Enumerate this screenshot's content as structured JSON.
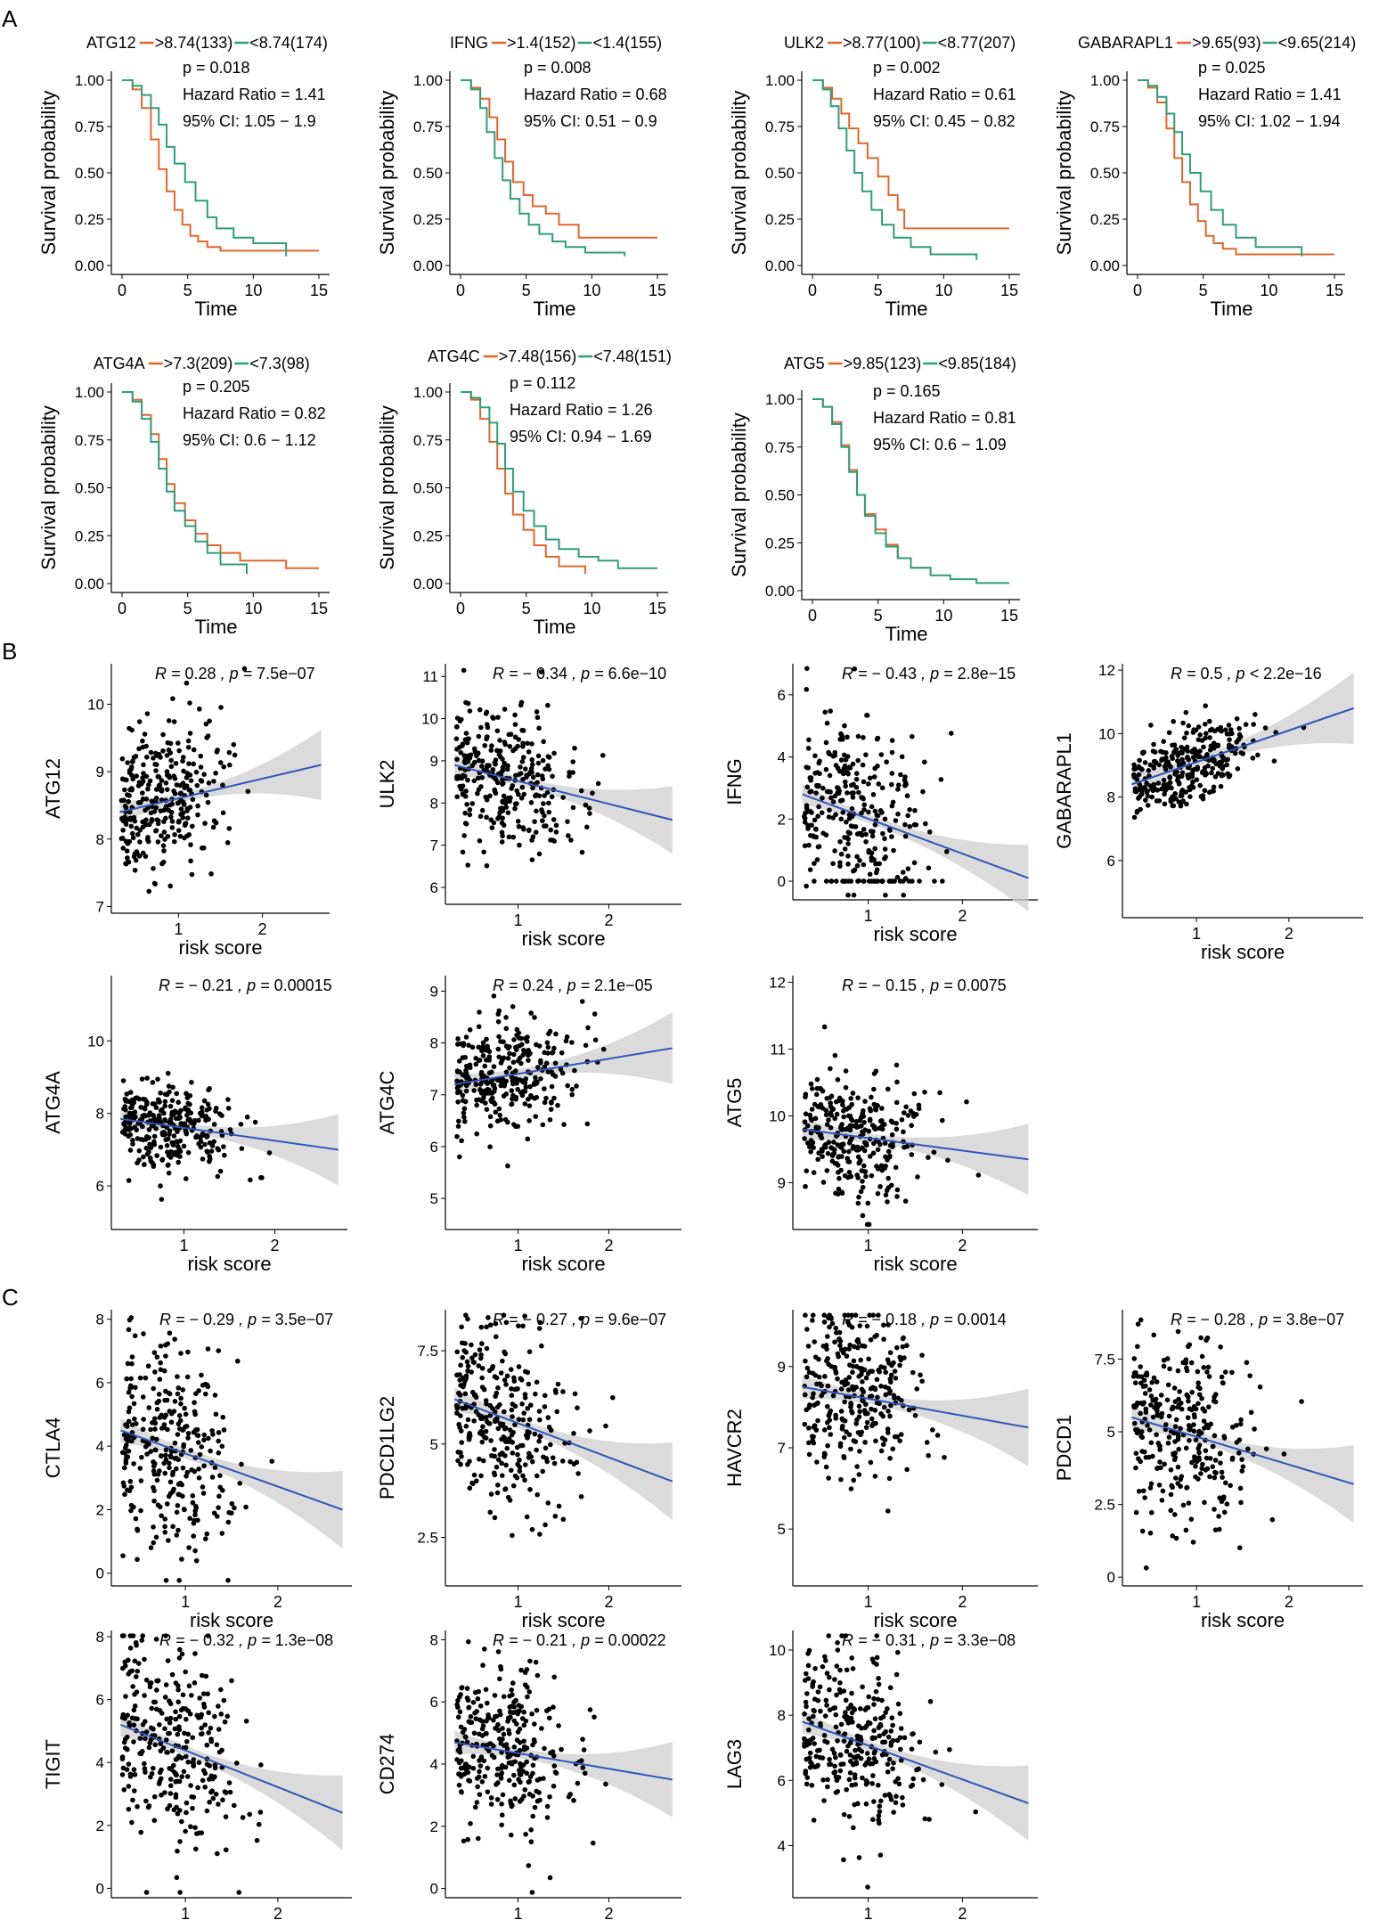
{
  "figure": {
    "panel_labels": [
      "A",
      "B",
      "C"
    ],
    "survival_axis": {
      "ylabel": "Survival probability",
      "xlabel": "Time",
      "yticks": [
        "0.00",
        "0.25",
        "0.50",
        "0.75",
        "1.00"
      ],
      "xticks": [
        "0",
        "5",
        "10",
        "15"
      ]
    },
    "corr_axis": {
      "xlabel": "risk score"
    }
  },
  "colors": {
    "high": "#e0672b",
    "low": "#2e9e7c",
    "fit": "#2e57b5",
    "band": "#cfcfcf",
    "point": "#000000"
  },
  "chart_data": [
    {
      "type": "line",
      "panel": "A",
      "gene": "ATG12",
      "legend": [
        "ATG12",
        ">8.74(133)",
        "<8.74(174)"
      ],
      "stats": [
        "p = 0.018",
        "Hazard Ratio = 1.41",
        "95% CI: 1.05 − 1.9"
      ],
      "xlim": [
        0,
        15
      ],
      "ylim": [
        0,
        1
      ],
      "series": [
        {
          "name": ">8.74(133)",
          "color": "high",
          "x": [
            0,
            0.8,
            1.5,
            2.2,
            2.8,
            3.4,
            4,
            4.6,
            5.2,
            5.8,
            6.5,
            7.5,
            15
          ],
          "y": [
            1,
            0.95,
            0.85,
            0.68,
            0.52,
            0.4,
            0.3,
            0.22,
            0.16,
            0.13,
            0.1,
            0.08,
            0.08
          ]
        },
        {
          "name": "<8.74(174)",
          "color": "low",
          "x": [
            0,
            0.8,
            1.5,
            2.2,
            2.8,
            3.4,
            4,
            4.8,
            5.6,
            6.5,
            7.2,
            8.5,
            10,
            12.5
          ],
          "y": [
            1,
            0.97,
            0.92,
            0.85,
            0.76,
            0.64,
            0.55,
            0.45,
            0.35,
            0.26,
            0.2,
            0.15,
            0.12,
            0.05
          ]
        }
      ]
    },
    {
      "type": "line",
      "panel": "A",
      "gene": "IFNG",
      "legend": [
        "IFNG",
        ">1.4(152)",
        "<1.4(155)"
      ],
      "stats": [
        "p = 0.008",
        "Hazard Ratio = 0.68",
        "95% CI: 0.51 − 0.9"
      ],
      "xlim": [
        0,
        15
      ],
      "ylim": [
        0,
        1
      ],
      "series": [
        {
          "name": ">1.4(152)",
          "color": "high",
          "x": [
            0,
            0.8,
            1.5,
            2.2,
            2.8,
            3.4,
            4,
            4.8,
            5.5,
            6.5,
            7.5,
            9,
            15
          ],
          "y": [
            1,
            0.96,
            0.9,
            0.8,
            0.68,
            0.56,
            0.45,
            0.38,
            0.32,
            0.28,
            0.22,
            0.15,
            0.15
          ]
        },
        {
          "name": "<1.4(155)",
          "color": "low",
          "x": [
            0,
            0.8,
            1.5,
            2,
            2.6,
            3.2,
            3.8,
            4.5,
            5.2,
            6,
            7,
            8,
            9.5,
            12.5
          ],
          "y": [
            1,
            0.95,
            0.85,
            0.72,
            0.58,
            0.46,
            0.36,
            0.28,
            0.22,
            0.17,
            0.13,
            0.1,
            0.07,
            0.05
          ]
        }
      ]
    },
    {
      "type": "line",
      "panel": "A",
      "gene": "ULK2",
      "legend": [
        "ULK2",
        ">8.77(100)",
        "<8.77(207)"
      ],
      "stats": [
        "p = 0.002",
        "Hazard Ratio = 0.61",
        "95% CI: 0.45 − 0.82"
      ],
      "xlim": [
        0,
        15
      ],
      "ylim": [
        0,
        1
      ],
      "series": [
        {
          "name": ">8.77(100)",
          "color": "high",
          "x": [
            0,
            0.8,
            1.5,
            2.2,
            2.8,
            3.5,
            4.2,
            5,
            5.8,
            6.5,
            7,
            15
          ],
          "y": [
            1,
            0.96,
            0.9,
            0.82,
            0.74,
            0.66,
            0.58,
            0.48,
            0.38,
            0.3,
            0.2,
            0.2
          ]
        },
        {
          "name": "<8.77(207)",
          "color": "low",
          "x": [
            0,
            0.8,
            1.4,
            2,
            2.6,
            3.2,
            3.8,
            4.5,
            5.3,
            6.2,
            7.5,
            9,
            12.5
          ],
          "y": [
            1,
            0.95,
            0.86,
            0.74,
            0.62,
            0.5,
            0.4,
            0.3,
            0.22,
            0.15,
            0.1,
            0.06,
            0.03
          ]
        }
      ]
    },
    {
      "type": "line",
      "panel": "A",
      "gene": "GABARAPL1",
      "legend": [
        "GABARAPL1",
        ">9.65(93)",
        "<9.65(214)"
      ],
      "stats": [
        "p = 0.025",
        "Hazard Ratio = 1.41",
        "95% CI: 1.02 − 1.94"
      ],
      "xlim": [
        0,
        15
      ],
      "ylim": [
        0,
        1
      ],
      "series": [
        {
          "name": ">9.65(93)",
          "color": "high",
          "x": [
            0,
            0.8,
            1.5,
            2.2,
            2.8,
            3.4,
            4,
            4.6,
            5.2,
            5.8,
            6.5,
            7.5,
            15
          ],
          "y": [
            1,
            0.96,
            0.88,
            0.74,
            0.58,
            0.45,
            0.33,
            0.24,
            0.16,
            0.12,
            0.09,
            0.06,
            0.06
          ]
        },
        {
          "name": "<9.65(214)",
          "color": "low",
          "x": [
            0,
            0.8,
            1.5,
            2.2,
            2.8,
            3.4,
            4,
            4.8,
            5.6,
            6.5,
            7.5,
            9,
            12.5
          ],
          "y": [
            1,
            0.97,
            0.91,
            0.82,
            0.72,
            0.6,
            0.5,
            0.4,
            0.3,
            0.22,
            0.15,
            0.1,
            0.05
          ]
        }
      ]
    },
    {
      "type": "line",
      "panel": "A",
      "gene": "ATG4A",
      "legend": [
        "ATG4A",
        ">7.3(209)",
        "<7.3(98)"
      ],
      "stats": [
        "p = 0.205",
        "Hazard Ratio = 0.82",
        "95% CI: 0.6 − 1.12"
      ],
      "xlim": [
        0,
        15
      ],
      "ylim": [
        0,
        1
      ],
      "series": [
        {
          "name": ">7.3(209)",
          "color": "high",
          "x": [
            0,
            0.8,
            1.5,
            2.2,
            2.8,
            3.4,
            4,
            4.8,
            5.6,
            6.5,
            7.5,
            9,
            12.5,
            15
          ],
          "y": [
            1,
            0.96,
            0.88,
            0.78,
            0.65,
            0.52,
            0.42,
            0.33,
            0.26,
            0.2,
            0.16,
            0.12,
            0.08,
            0.08
          ]
        },
        {
          "name": "<7.3(98)",
          "color": "low",
          "x": [
            0,
            0.8,
            1.5,
            2.2,
            2.8,
            3.4,
            4,
            4.8,
            5.6,
            6.5,
            7.5,
            9.5
          ],
          "y": [
            1,
            0.95,
            0.86,
            0.74,
            0.6,
            0.48,
            0.38,
            0.3,
            0.22,
            0.16,
            0.1,
            0.05
          ]
        }
      ]
    },
    {
      "type": "line",
      "panel": "A",
      "gene": "ATG4C",
      "legend": [
        "ATG4C",
        ">7.48(156)",
        "<7.48(151)"
      ],
      "stats": [
        "p = 0.112",
        "Hazard Ratio = 1.26",
        "95% CI: 0.94 − 1.69"
      ],
      "xlim": [
        0,
        15
      ],
      "ylim": [
        0,
        1
      ],
      "series": [
        {
          "name": ">7.48(156)",
          "color": "high",
          "x": [
            0,
            0.8,
            1.5,
            2.2,
            2.8,
            3.4,
            4,
            4.8,
            5.6,
            6.5,
            7.5,
            9.5
          ],
          "y": [
            1,
            0.96,
            0.86,
            0.74,
            0.6,
            0.47,
            0.36,
            0.28,
            0.2,
            0.14,
            0.09,
            0.05
          ]
        },
        {
          "name": "<7.48(151)",
          "color": "low",
          "x": [
            0,
            0.8,
            1.5,
            2.2,
            2.8,
            3.4,
            4,
            4.8,
            5.6,
            6.5,
            7.5,
            9,
            10.5,
            12,
            15
          ],
          "y": [
            1,
            0.97,
            0.92,
            0.84,
            0.73,
            0.6,
            0.48,
            0.38,
            0.3,
            0.23,
            0.18,
            0.14,
            0.12,
            0.08,
            0.08
          ]
        }
      ]
    },
    {
      "type": "line",
      "panel": "A",
      "gene": "ATG5",
      "legend": [
        "ATG5",
        ">9.85(123)",
        "<9.85(184)"
      ],
      "stats": [
        "p = 0.165",
        "Hazard Ratio = 0.81",
        "95% CI: 0.6 − 1.09"
      ],
      "xlim": [
        0,
        15
      ],
      "ylim": [
        0,
        1
      ],
      "series": [
        {
          "name": ">9.85(123)",
          "color": "high",
          "x": [
            0,
            0.8,
            1.5,
            2.2,
            2.8,
            3.4,
            4,
            4.8,
            5.6,
            6.5,
            7.5,
            9
          ],
          "y": [
            1,
            0.96,
            0.88,
            0.76,
            0.63,
            0.5,
            0.4,
            0.32,
            0.24,
            0.17,
            0.12,
            0.1
          ]
        },
        {
          "name": "<9.85(184)",
          "color": "low",
          "x": [
            0,
            0.8,
            1.5,
            2.2,
            2.8,
            3.4,
            4,
            4.8,
            5.6,
            6.5,
            7.5,
            9,
            10.5,
            12.5,
            15
          ],
          "y": [
            1,
            0.96,
            0.87,
            0.75,
            0.62,
            0.5,
            0.39,
            0.3,
            0.23,
            0.17,
            0.12,
            0.08,
            0.06,
            0.04,
            0.04
          ]
        }
      ]
    },
    {
      "type": "scatter",
      "panel": "B",
      "ylabel": "ATG12",
      "stat": {
        "prefix": "R = ",
        "r": "0.28",
        "mid": " , p = ",
        "p": "7.5e−07"
      },
      "xlim": [
        0.2,
        2.8
      ],
      "ylim": [
        6.9,
        10.6
      ],
      "yticks": [
        7,
        8,
        9,
        10
      ],
      "xticks": [
        1,
        2
      ],
      "fit": [
        8.4,
        9.1
      ],
      "mean": 8.7,
      "sd": 0.55,
      "seed": 11
    },
    {
      "type": "scatter",
      "panel": "B",
      "ylabel": "ULK2",
      "stat": {
        "prefix": "R = ",
        "r": "− 0.34",
        "mid": " , p = ",
        "p": "6.6e−10"
      },
      "xlim": [
        0.2,
        2.8
      ],
      "ylim": [
        5.6,
        11.3
      ],
      "yticks": [
        6,
        7,
        8,
        9,
        10,
        11
      ],
      "xticks": [
        1,
        2
      ],
      "fit": [
        8.9,
        7.6
      ],
      "mean": 8.4,
      "sd": 0.85,
      "seed": 22
    },
    {
      "type": "scatter",
      "panel": "B",
      "ylabel": "IFNG",
      "stat": {
        "prefix": "R = ",
        "r": "− 0.43",
        "mid": " , p = ",
        "p": "2.8e−15"
      },
      "xlim": [
        0.2,
        2.8
      ],
      "ylim": [
        -0.6,
        7.0
      ],
      "yticks": [
        0,
        2,
        4,
        6
      ],
      "xticks": [
        1,
        2
      ],
      "fit": [
        2.8,
        0.1
      ],
      "mean": 2.0,
      "sd": 1.6,
      "floor": 0,
      "seed": 33
    },
    {
      "type": "scatter",
      "panel": "B",
      "ylabel": "GABARAPL1",
      "stat": {
        "prefix": "R = ",
        "r": "0.5",
        "mid": " , p < ",
        "p": "2.2e−16"
      },
      "xlim": [
        0.2,
        2.8
      ],
      "ylim": [
        4.2,
        12.2
      ],
      "yticks": [
        6,
        8,
        10,
        12
      ],
      "xticks": [
        1,
        2
      ],
      "fit": [
        8.4,
        10.8
      ],
      "mean": 9.3,
      "sd": 0.7,
      "seed": 44
    },
    {
      "type": "scatter",
      "panel": "B",
      "ylabel": "ATG4A",
      "stat": {
        "prefix": "R = ",
        "r": "− 0.21",
        "mid": " , p = ",
        "p": "0.00015"
      },
      "xlim": [
        0.2,
        2.8
      ],
      "ylim": [
        4.8,
        11.8
      ],
      "yticks": [
        6,
        8,
        10
      ],
      "xticks": [
        1,
        2
      ],
      "fit": [
        7.85,
        7.0
      ],
      "mean": 7.55,
      "sd": 0.6,
      "seed": 55
    },
    {
      "type": "scatter",
      "panel": "B",
      "ylabel": "ATG4C",
      "stat": {
        "prefix": "R = ",
        "r": "0.24",
        "mid": " , p = ",
        "p": "2.1e−05"
      },
      "xlim": [
        0.2,
        2.8
      ],
      "ylim": [
        4.4,
        9.3
      ],
      "yticks": [
        5,
        6,
        7,
        8,
        9
      ],
      "xticks": [
        1,
        2
      ],
      "fit": [
        7.2,
        7.9
      ],
      "mean": 7.5,
      "sd": 0.55,
      "seed": 66
    },
    {
      "type": "scatter",
      "panel": "B",
      "ylabel": "ATG5",
      "stat": {
        "prefix": "R = ",
        "r": "− 0.15",
        "mid": " , p = ",
        "p": "0.0075"
      },
      "xlim": [
        0.2,
        2.8
      ],
      "ylim": [
        8.3,
        12.1
      ],
      "yticks": [
        9,
        10,
        11,
        12
      ],
      "xticks": [
        1,
        2
      ],
      "fit": [
        9.8,
        9.35
      ],
      "mean": 9.6,
      "sd": 0.5,
      "seed": 77
    },
    {
      "type": "scatter",
      "panel": "C",
      "ylabel": "CTLA4",
      "stat": {
        "prefix": "R = ",
        "r": "− 0.29",
        "mid": " , p = ",
        "p": "3.5e−07"
      },
      "xlim": [
        0.2,
        2.8
      ],
      "ylim": [
        -0.4,
        8.3
      ],
      "yticks": [
        0,
        2,
        4,
        6,
        8
      ],
      "xticks": [
        1,
        2
      ],
      "fit": [
        4.5,
        2.0
      ],
      "mean": 3.8,
      "sd": 1.6,
      "seed": 88
    },
    {
      "type": "scatter",
      "panel": "C",
      "ylabel": "PDCD1LG2",
      "stat": {
        "prefix": "R = ",
        "r": "− 0.27",
        "mid": " , p = ",
        "p": "9.6e−07"
      },
      "xlim": [
        0.2,
        2.8
      ],
      "ylim": [
        1.2,
        8.6
      ],
      "yticks": [
        2.5,
        5.0,
        7.5
      ],
      "xticks": [
        1,
        2
      ],
      "fit": [
        6.2,
        4.0
      ],
      "mean": 5.6,
      "sd": 1.2,
      "seed": 99
    },
    {
      "type": "scatter",
      "panel": "C",
      "ylabel": "HAVCR2",
      "stat": {
        "prefix": "R = ",
        "r": "− 0.18",
        "mid": " , p = ",
        "p": "0.0014"
      },
      "xlim": [
        0.2,
        2.8
      ],
      "ylim": [
        3.6,
        10.4
      ],
      "yticks": [
        5,
        7,
        9
      ],
      "xticks": [
        1,
        2
      ],
      "fit": [
        8.5,
        7.5
      ],
      "mean": 7.9,
      "sd": 1.1,
      "seed": 111
    },
    {
      "type": "scatter",
      "panel": "C",
      "ylabel": "PDCD1",
      "stat": {
        "prefix": "R = ",
        "r": "− 0.28",
        "mid": " , p = ",
        "p": "3.8e−07"
      },
      "xlim": [
        0.2,
        2.8
      ],
      "ylim": [
        -0.3,
        9.2
      ],
      "yticks": [
        0.0,
        2.5,
        5.0,
        7.5
      ],
      "xticks": [
        1,
        2
      ],
      "fit": [
        5.5,
        3.2
      ],
      "mean": 4.5,
      "sd": 1.6,
      "seed": 122
    },
    {
      "type": "scatter",
      "panel": "C",
      "ylabel": "TIGIT",
      "stat": {
        "prefix": "R = ",
        "r": "− 0.32",
        "mid": " , p = ",
        "p": "1.3e−08"
      },
      "xlim": [
        0.2,
        2.8
      ],
      "ylim": [
        -0.3,
        8.2
      ],
      "yticks": [
        0,
        2,
        4,
        6,
        8
      ],
      "xticks": [
        1,
        2
      ],
      "fit": [
        5.2,
        2.4
      ],
      "mean": 4.3,
      "sd": 1.6,
      "seed": 133
    },
    {
      "type": "scatter",
      "panel": "C",
      "ylabel": "CD274",
      "stat": {
        "prefix": "R = ",
        "r": "− 0.21",
        "mid": " , p = ",
        "p": "0.00022"
      },
      "xlim": [
        0.2,
        2.8
      ],
      "ylim": [
        -0.3,
        8.3
      ],
      "yticks": [
        0,
        2,
        4,
        6,
        8
      ],
      "xticks": [
        1,
        2
      ],
      "fit": [
        4.7,
        3.5
      ],
      "mean": 4.3,
      "sd": 1.3,
      "seed": 144
    },
    {
      "type": "scatter",
      "panel": "C",
      "ylabel": "LAG3",
      "stat": {
        "prefix": "R = ",
        "r": "− 0.31",
        "mid": " , p = ",
        "p": "3.3e−08"
      },
      "xlim": [
        0.2,
        2.8
      ],
      "ylim": [
        2.4,
        10.6
      ],
      "yticks": [
        4,
        6,
        8,
        10
      ],
      "xticks": [
        1,
        2
      ],
      "fit": [
        7.8,
        5.3
      ],
      "mean": 6.9,
      "sd": 1.3,
      "seed": 155
    }
  ]
}
